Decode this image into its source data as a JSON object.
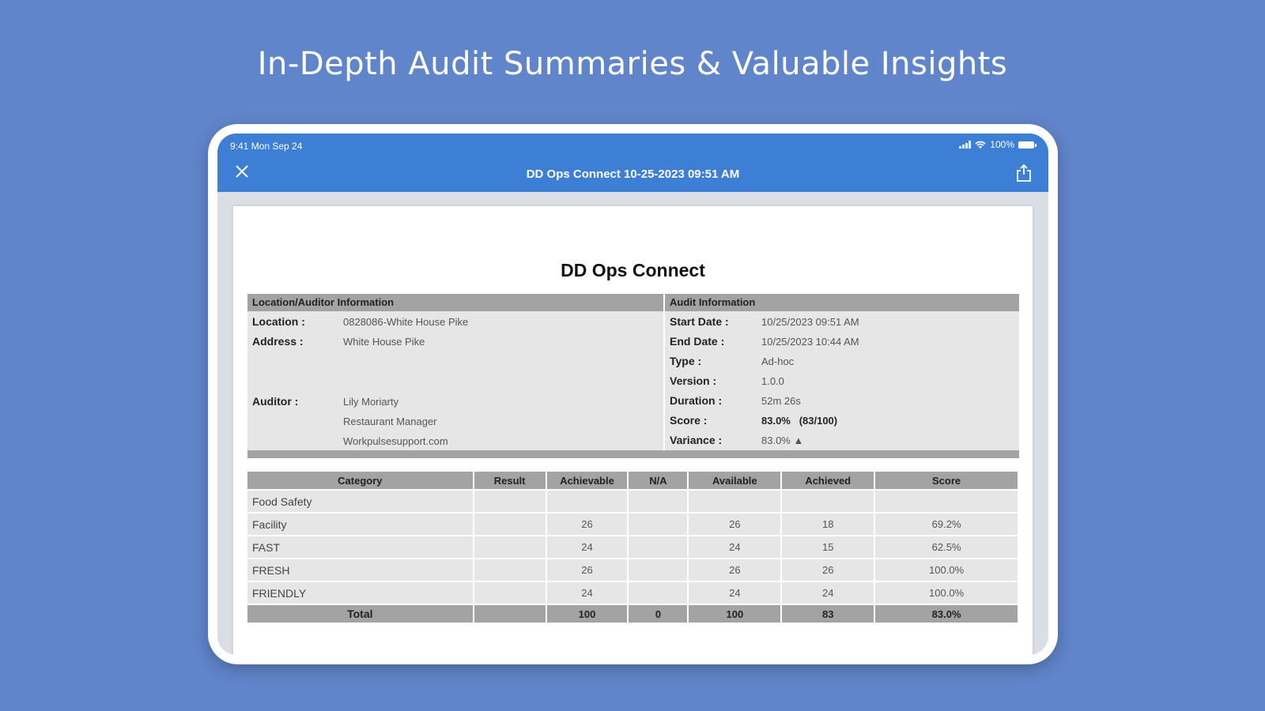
{
  "headline": "In-Depth Audit Summaries & Valuable Insights",
  "status_bar": {
    "time": "9:41  Mon Sep 24",
    "battery": "100%"
  },
  "app_bar": {
    "title": "DD Ops Connect 10-25-2023 09:51 AM"
  },
  "icons": {
    "close": "close-icon",
    "share": "share-icon",
    "signal": "signal-icon",
    "wifi": "wifi-icon",
    "battery": "battery-icon"
  },
  "colors": {
    "background": "#6185cb",
    "app_bar": "#3d7fd5",
    "header_gray": "#a3a3a3",
    "cell_gray": "#e6e6e6"
  },
  "report": {
    "title": "DD Ops Connect",
    "location_section": {
      "heading": "Location/Auditor Information",
      "location_label": "Location :",
      "location_value": "0828086-White House Pike",
      "address_label": "Address :",
      "address_value": "White House Pike",
      "auditor_label": "Auditor :",
      "auditor_name": "Lily Moriarty",
      "auditor_role": "Restaurant Manager",
      "auditor_email": "Workpulsesupport.com"
    },
    "audit_section": {
      "heading": "Audit Information",
      "start_label": "Start Date :",
      "start_value": "10/25/2023 09:51 AM",
      "end_label": "End Date :",
      "end_value": "10/25/2023 10:44 AM",
      "type_label": "Type :",
      "type_value": "Ad-hoc",
      "version_label": "Version :",
      "version_value": "1.0.0",
      "duration_label": "Duration :",
      "duration_value": "52m 26s",
      "score_label": "Score :",
      "score_value": "83.0%   (83/100)",
      "variance_label": "Variance :",
      "variance_value": "83.0% ▲"
    },
    "table": {
      "headers": [
        "Category",
        "Result",
        "Achievable",
        "N/A",
        "Available",
        "Achieved",
        "Score"
      ],
      "rows": [
        [
          "Food Safety",
          "",
          "",
          "",
          "",
          "",
          ""
        ],
        [
          "Facility",
          "",
          "26",
          "",
          "26",
          "18",
          "69.2%"
        ],
        [
          "FAST",
          "",
          "24",
          "",
          "24",
          "15",
          "62.5%"
        ],
        [
          "FRESH",
          "",
          "26",
          "",
          "26",
          "26",
          "100.0%"
        ],
        [
          "FRIENDLY",
          "",
          "24",
          "",
          "24",
          "24",
          "100.0%"
        ]
      ],
      "total": [
        "Total",
        "",
        "100",
        "0",
        "100",
        "83",
        "83.0%"
      ]
    }
  }
}
